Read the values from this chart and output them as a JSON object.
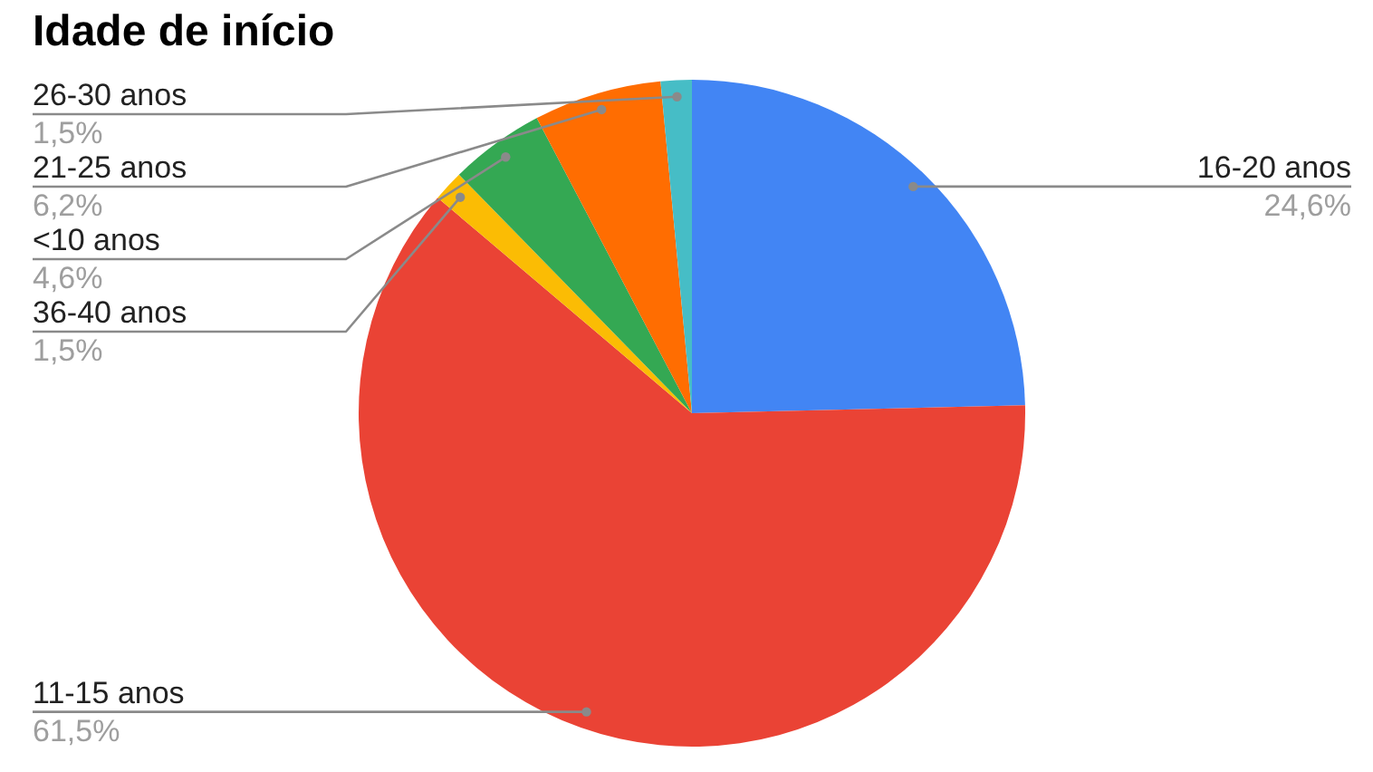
{
  "chart_data": {
    "type": "pie",
    "title": "Idade de início",
    "categories": [
      "16-20 anos",
      "11-15 anos",
      "36-40 anos",
      "<10 anos",
      "21-25 anos",
      "26-30 anos"
    ],
    "values": [
      24.6,
      61.5,
      1.5,
      4.6,
      6.2,
      1.5
    ],
    "colors": [
      "#4285f4",
      "#ea4335",
      "#fbbc04",
      "#34a853",
      "#ff6d01",
      "#46bdc6"
    ],
    "value_labels": [
      "24,6%",
      "61,5%",
      "1,5%",
      "4,6%",
      "6,2%",
      "1,5%"
    ]
  }
}
